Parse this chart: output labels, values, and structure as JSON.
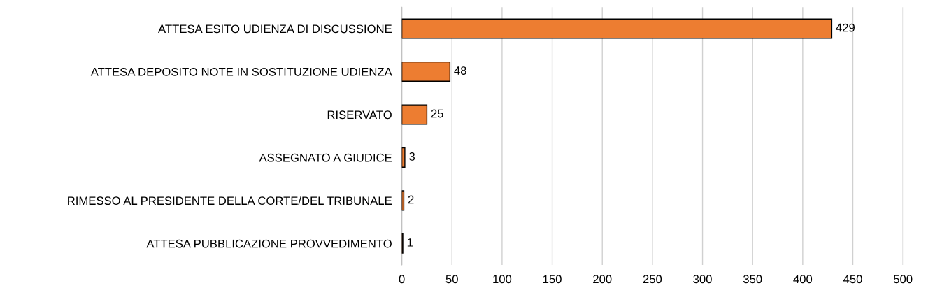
{
  "chart_data": {
    "type": "bar",
    "orientation": "horizontal",
    "categories": [
      "ATTESA ESITO UDIENZA DI DISCUSSIONE",
      "ATTESA DEPOSITO NOTE IN SOSTITUZIONE UDIENZA",
      "RISERVATO",
      "ASSEGNATO A GIUDICE",
      "RIMESSO AL PRESIDENTE DELLA CORTE/DEL TRIBUNALE",
      "ATTESA PUBBLICAZIONE PROVVEDIMENTO"
    ],
    "values": [
      429,
      48,
      25,
      3,
      2,
      1
    ],
    "color": "#ed7d31",
    "xlim": [
      0,
      500
    ],
    "xticks": [
      0,
      50,
      100,
      150,
      200,
      250,
      300,
      350,
      400,
      450,
      500
    ],
    "grid": "x",
    "data_labels": true
  }
}
